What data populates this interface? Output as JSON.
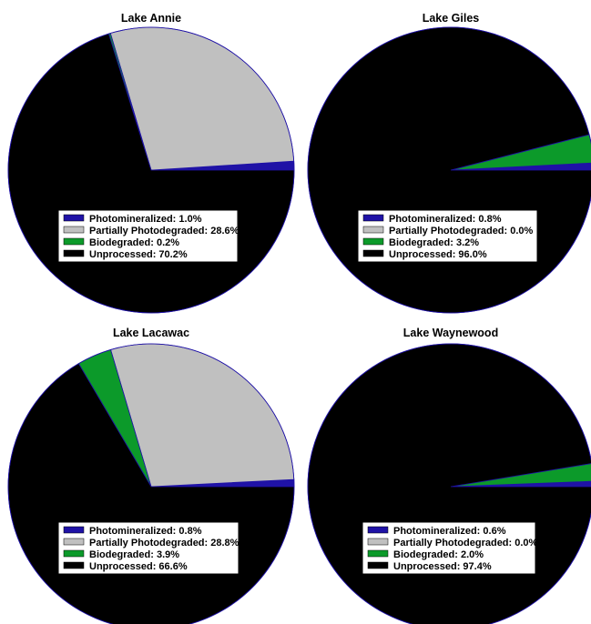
{
  "chart_data": [
    {
      "type": "pie",
      "title": "Lake Annie",
      "series": [
        {
          "name": "Photomineralized",
          "label": "Photomineralized: 1.0%",
          "value": 1.0,
          "color": "#1f12a6"
        },
        {
          "name": "Partially Photodegraded",
          "label": "Partially Photodegraded: 28.6%",
          "value": 28.6,
          "color": "#c0c0c0"
        },
        {
          "name": "Biodegraded",
          "label": "Biodegraded: 0.2%",
          "value": 0.2,
          "color": "#0c9a2a"
        },
        {
          "name": "Unprocessed",
          "label": "Unprocessed: 70.2%",
          "value": 70.2,
          "color": "#000000"
        }
      ]
    },
    {
      "type": "pie",
      "title": "Lake Giles",
      "series": [
        {
          "name": "Photomineralized",
          "label": "Photomineralized: 0.8%",
          "value": 0.8,
          "color": "#1f12a6"
        },
        {
          "name": "Partially Photodegraded",
          "label": "Partially Photodegraded: 0.0%",
          "value": 0.0,
          "color": "#c0c0c0"
        },
        {
          "name": "Biodegraded",
          "label": "Biodegraded: 3.2%",
          "value": 3.2,
          "color": "#0c9a2a"
        },
        {
          "name": "Unprocessed",
          "label": "Unprocessed: 96.0%",
          "value": 96.0,
          "color": "#000000"
        }
      ]
    },
    {
      "type": "pie",
      "title": "Lake Lacawac",
      "series": [
        {
          "name": "Photomineralized",
          "label": "Photomineralized: 0.8%",
          "value": 0.8,
          "color": "#1f12a6"
        },
        {
          "name": "Partially Photodegraded",
          "label": "Partially Photodegraded: 28.8%",
          "value": 28.8,
          "color": "#c0c0c0"
        },
        {
          "name": "Biodegraded",
          "label": "Biodegraded: 3.9%",
          "value": 3.9,
          "color": "#0c9a2a"
        },
        {
          "name": "Unprocessed",
          "label": "Unprocessed: 66.6%",
          "value": 66.6,
          "color": "#000000"
        }
      ]
    },
    {
      "type": "pie",
      "title": "Lake Waynewood",
      "series": [
        {
          "name": "Photomineralized",
          "label": "Photomineralized: 0.6%",
          "value": 0.6,
          "color": "#1f12a6"
        },
        {
          "name": "Partially Photodegraded",
          "label": "Partially Photodegraded: 0.0%",
          "value": 0.0,
          "color": "#c0c0c0"
        },
        {
          "name": "Biodegraded",
          "label": "Biodegraded: 2.0%",
          "value": 2.0,
          "color": "#0c9a2a"
        },
        {
          "name": "Unprocessed",
          "label": "Unprocessed: 97.4%",
          "value": 97.4,
          "color": "#000000"
        }
      ]
    }
  ]
}
